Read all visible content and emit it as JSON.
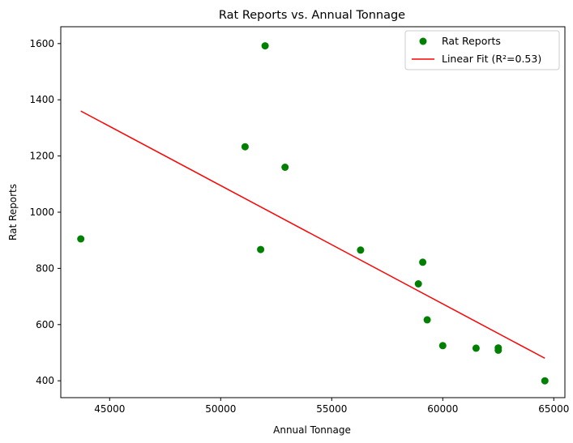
{
  "chart_data": {
    "type": "scatter",
    "title": "Rat Reports vs. Annual Tonnage",
    "xlabel": "Annual Tonnage",
    "ylabel": "Rat Reports",
    "xlim": [
      42800,
      65500
    ],
    "ylim": [
      340,
      1660
    ],
    "xticks": [
      45000,
      50000,
      55000,
      60000,
      65000
    ],
    "yticks": [
      400,
      600,
      800,
      1000,
      1200,
      1400,
      1600
    ],
    "grid": false,
    "legend_position": "upper right",
    "series": [
      {
        "name": "Rat Reports",
        "kind": "scatter",
        "color": "#008000",
        "points": [
          {
            "x": 43700,
            "y": 905
          },
          {
            "x": 51100,
            "y": 1233
          },
          {
            "x": 51800,
            "y": 867
          },
          {
            "x": 52000,
            "y": 1592
          },
          {
            "x": 52900,
            "y": 1160
          },
          {
            "x": 56300,
            "y": 865
          },
          {
            "x": 58900,
            "y": 745
          },
          {
            "x": 59100,
            "y": 822
          },
          {
            "x": 59300,
            "y": 617
          },
          {
            "x": 60000,
            "y": 525
          },
          {
            "x": 61500,
            "y": 516
          },
          {
            "x": 62500,
            "y": 517
          },
          {
            "x": 62500,
            "y": 509
          },
          {
            "x": 64600,
            "y": 400
          }
        ]
      },
      {
        "name": "Linear Fit (R²=0.53)",
        "kind": "line",
        "color": "#ff0000",
        "points": [
          {
            "x": 43700,
            "y": 1360
          },
          {
            "x": 64600,
            "y": 480
          }
        ]
      }
    ]
  }
}
